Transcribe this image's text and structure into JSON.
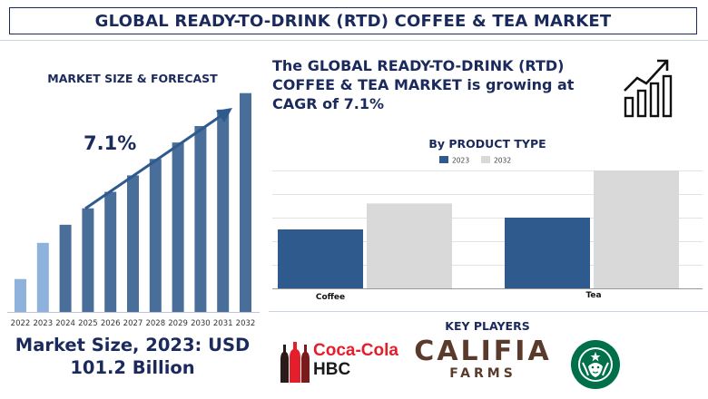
{
  "header": {
    "title": "GLOBAL READY-TO-DRINK (RTD) COFFEE & TEA MARKET"
  },
  "market_panel": {
    "label": "MARKET SIZE & FORECAST",
    "cagr": "7.1%",
    "market_size_line1": "Market Size, 2023: USD",
    "market_size_line2": "101.2 Billion"
  },
  "headline": {
    "line1": "The GLOBAL READY-TO-DRINK (RTD)",
    "line2": "COFFEE & TEA MARKET is growing at",
    "line3": "CAGR of 7.1%"
  },
  "key_players": {
    "title": "KEY PLAYERS",
    "players": [
      {
        "name_line1": "Coca-Cola",
        "name_line2": "HBC"
      },
      {
        "name_line1": "CALIFIA",
        "name_line2": "FARMS"
      },
      {
        "name_line1": "",
        "name_line2": ""
      }
    ]
  },
  "colors": {
    "navy": "#1b2a5c",
    "bar_dark": "#4a6e9a",
    "bar_light": "#8fb2dc",
    "coffee_2023": "#2e5a8e",
    "tea_2032": "#d9d9d9",
    "coca_cola_red": "#e41e2b",
    "starbucks_green": "#00704a"
  },
  "chart_data": [
    {
      "type": "bar",
      "title": "MARKET SIZE & FORECAST",
      "categories": [
        "2022",
        "2023",
        "2024",
        "2025",
        "2026",
        "2027",
        "2028",
        "2029",
        "2030",
        "2031",
        "2032"
      ],
      "values": [
        1.0,
        2.1,
        2.65,
        3.15,
        3.65,
        4.15,
        4.65,
        5.15,
        5.65,
        6.15,
        6.65
      ],
      "highlight": [
        "2022",
        "2023"
      ],
      "annotation": "7.1%",
      "ylim": [
        0,
        7
      ],
      "xlabel": "",
      "ylabel": "",
      "grid": false
    },
    {
      "type": "bar",
      "title": "By PRODUCT TYPE",
      "categories": [
        "Coffee",
        "Tea"
      ],
      "series": [
        {
          "name": "2023",
          "values": [
            50,
            60
          ]
        },
        {
          "name": "2032",
          "values": [
            72,
            100
          ]
        }
      ],
      "ylim": [
        0,
        100
      ],
      "legend": "top-center",
      "grid": true,
      "xlabel": "",
      "ylabel": ""
    }
  ]
}
